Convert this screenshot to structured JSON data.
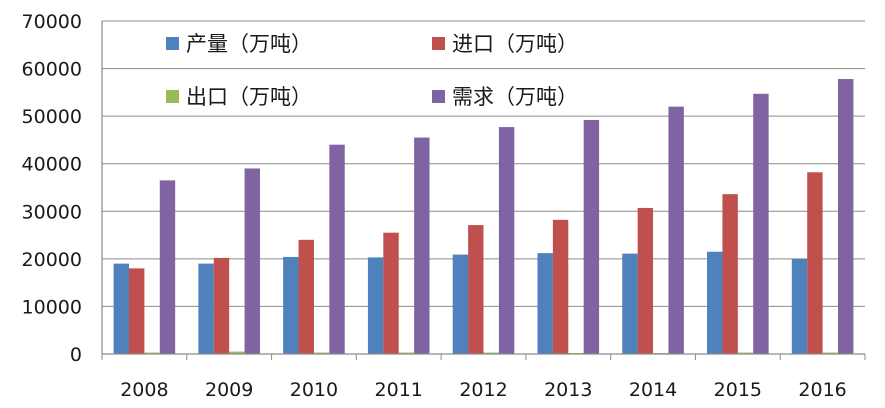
{
  "chart_data": {
    "type": "bar",
    "categories": [
      "2008",
      "2009",
      "2010",
      "2011",
      "2012",
      "2013",
      "2014",
      "2015",
      "2016"
    ],
    "series": [
      {
        "name": "产量（万吨）",
        "color": "#4f81bd",
        "values": [
          19000,
          19000,
          20400,
          20300,
          20900,
          21200,
          21100,
          21500,
          20000
        ]
      },
      {
        "name": "进口（万吨）",
        "color": "#c0504d",
        "values": [
          18000,
          20200,
          24000,
          25500,
          27100,
          28200,
          30700,
          33600,
          38200
        ]
      },
      {
        "name": "出口（万吨）",
        "color": "#9bbb59",
        "values": [
          300,
          500,
          300,
          300,
          300,
          200,
          200,
          300,
          300
        ]
      },
      {
        "name": "需求（万吨）",
        "color": "#8064a2",
        "values": [
          36500,
          39000,
          44000,
          45500,
          47700,
          49200,
          52000,
          54700,
          57800
        ]
      }
    ],
    "yticks": [
      "0",
      "10000",
      "20000",
      "30000",
      "40000",
      "50000",
      "60000",
      "70000"
    ],
    "ylim": [
      0,
      70000
    ],
    "grid": true,
    "legend_position": "top-left"
  }
}
